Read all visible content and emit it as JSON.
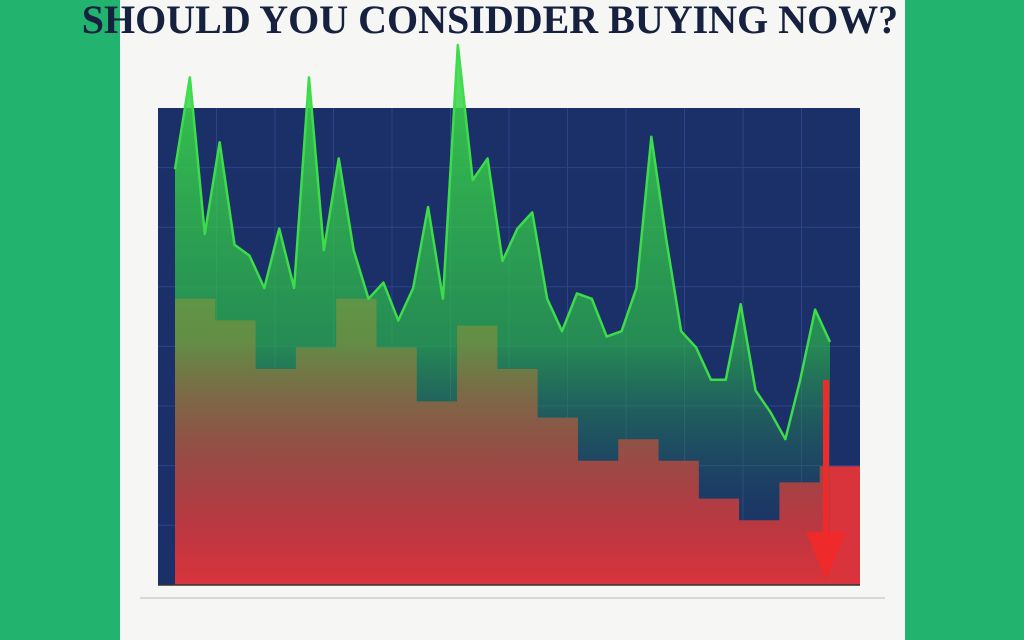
{
  "chart_data": {
    "type": "line",
    "title": "SHOULD YOU CONSIDDER BUYING NOW?",
    "ylim": [
      0,
      100
    ],
    "series": [
      {
        "color": "#3ddc4a",
        "values": [
          77,
          94,
          65,
          82,
          63,
          61,
          55,
          66,
          55,
          94,
          62,
          79,
          62,
          53,
          56,
          49,
          55,
          70,
          53,
          100,
          75,
          79,
          60,
          66,
          69,
          53,
          47,
          54,
          53,
          46,
          47,
          55,
          83,
          64,
          47,
          44,
          38,
          38,
          52,
          36,
          32,
          27,
          38,
          51,
          45
        ]
      },
      {
        "color": "#d9343b",
        "values": [
          53,
          49,
          40,
          44,
          53,
          44,
          34,
          48,
          40,
          31,
          23,
          27,
          23,
          16,
          12,
          19,
          22
        ]
      }
    ]
  }
}
